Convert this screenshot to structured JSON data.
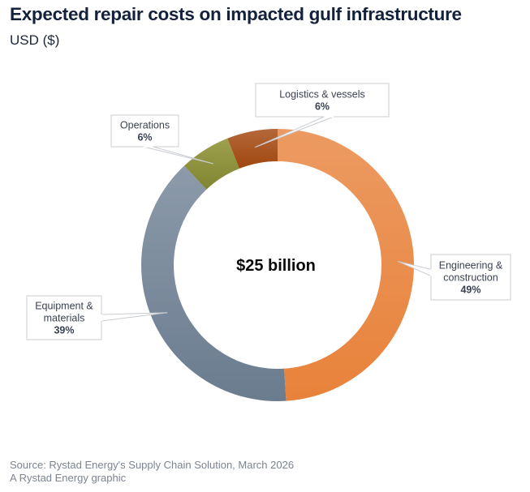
{
  "header": {
    "title": "Expected repair costs on impacted gulf infrastructure",
    "subtitle": "USD ($)"
  },
  "footer": {
    "source": "Source: Rystad Energy's Supply Chain Solution, March 2026",
    "credit": "A Rystad Energy graphic"
  },
  "chart_data": {
    "type": "pie",
    "variant": "donut",
    "title": "Expected repair costs on impacted gulf infrastructure",
    "subtitle": "USD ($)",
    "center_label": "$25 billion",
    "total_value": 25,
    "total_unit": "USD billion",
    "start": "12 o'clock",
    "direction": "clockwise",
    "slices": [
      {
        "name": "Engineering & construction",
        "label_lines": [
          "Engineering &",
          "construction"
        ],
        "value": 49,
        "pct_label": "49%",
        "color": "#E8823A",
        "color_light": "#EC9A62"
      },
      {
        "name": "Equipment & materials",
        "label_lines": [
          "Equipment &",
          "materials"
        ],
        "value": 39,
        "pct_label": "39%",
        "color": "#6B7C8F",
        "color_light": "#8C9AAA"
      },
      {
        "name": "Operations",
        "label_lines": [
          "Operations"
        ],
        "value": 6,
        "pct_label": "6%",
        "color": "#7F8530",
        "color_light": "#9EA04E"
      },
      {
        "name": "Logistics & vessels",
        "label_lines": [
          "Logistics & vessels"
        ],
        "value": 6,
        "pct_label": "6%",
        "color": "#A0470F",
        "color_light": "#B4683A"
      }
    ],
    "legend": "callouts"
  }
}
